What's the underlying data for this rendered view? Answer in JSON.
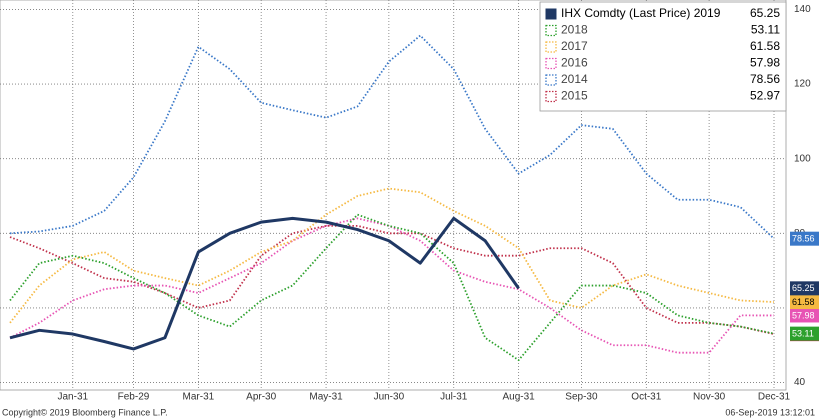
{
  "chart_data": {
    "type": "line",
    "x": [
      1,
      15,
      31,
      46,
      60,
      75,
      91,
      106,
      121,
      136,
      152,
      167,
      182,
      197,
      213,
      228,
      244,
      259,
      274,
      289,
      305,
      320,
      335,
      350,
      366
    ],
    "xlim": [
      1,
      366
    ],
    "xticks": [
      {
        "value": 31,
        "label": "Jan-31"
      },
      {
        "value": 60,
        "label": "Feb-29"
      },
      {
        "value": 91,
        "label": "Mar-31"
      },
      {
        "value": 121,
        "label": "Apr-30"
      },
      {
        "value": 152,
        "label": "May-31"
      },
      {
        "value": 182,
        "label": "Jun-30"
      },
      {
        "value": 213,
        "label": "Jul-31"
      },
      {
        "value": 244,
        "label": "Aug-31"
      },
      {
        "value": 274,
        "label": "Sep-30"
      },
      {
        "value": 305,
        "label": "Oct-31"
      },
      {
        "value": 335,
        "label": "Nov-30"
      },
      {
        "value": 366,
        "label": "Dec-31"
      }
    ],
    "ylim": [
      38,
      142
    ],
    "yticks": [
      40,
      60,
      80,
      100,
      120,
      140
    ],
    "grid": true,
    "legend": "top-right",
    "series": [
      {
        "name": "2015",
        "color": "#c0304a",
        "values": [
          79,
          76,
          72,
          68,
          67,
          64,
          60,
          62,
          74,
          80,
          82,
          82,
          80,
          80,
          76,
          74,
          74,
          76,
          76,
          72,
          60,
          56,
          56,
          55,
          52.97
        ]
      },
      {
        "name": "2014",
        "color": "#3a78c8",
        "values": [
          80,
          80.5,
          82,
          86,
          95,
          110,
          130,
          124,
          115,
          113,
          111,
          114,
          126,
          133,
          124,
          108,
          96,
          101,
          109,
          108,
          96,
          89,
          89,
          87,
          78.56
        ]
      },
      {
        "name": "2016",
        "color": "#e754b4",
        "values": [
          52,
          56,
          62,
          65,
          66,
          66,
          64,
          68,
          72,
          78,
          82,
          84,
          82,
          78,
          70,
          67,
          65,
          60,
          54,
          50,
          50,
          48,
          48,
          58,
          57.98
        ]
      },
      {
        "name": "2017",
        "color": "#f5b942",
        "values": [
          56,
          66,
          73,
          75,
          70,
          68,
          66,
          70,
          75,
          78,
          85,
          90,
          92,
          91,
          86,
          82,
          76,
          62,
          60,
          66,
          69,
          66,
          64,
          62,
          61.58
        ]
      },
      {
        "name": "2018",
        "color": "#2ca02c",
        "values": [
          62,
          72,
          74,
          72,
          68,
          64,
          58,
          55,
          62,
          66,
          76,
          85,
          82,
          80,
          72,
          52,
          46,
          56,
          66,
          66,
          64,
          58,
          56,
          55,
          53.11
        ]
      },
      {
        "name": "IHX Comdty (Last Price) 2019",
        "color": "#1f3864",
        "values": [
          52,
          54,
          53,
          51,
          49,
          52,
          75,
          80,
          83,
          84,
          83,
          81,
          78,
          72,
          84,
          78,
          65.25,
          null,
          null,
          null,
          null,
          null,
          null,
          null,
          null
        ]
      }
    ],
    "footer_left": "Copyright© 2019 Bloomberg Finance L.P.",
    "footer_right": "06-Sep-2019 13:12:01"
  }
}
